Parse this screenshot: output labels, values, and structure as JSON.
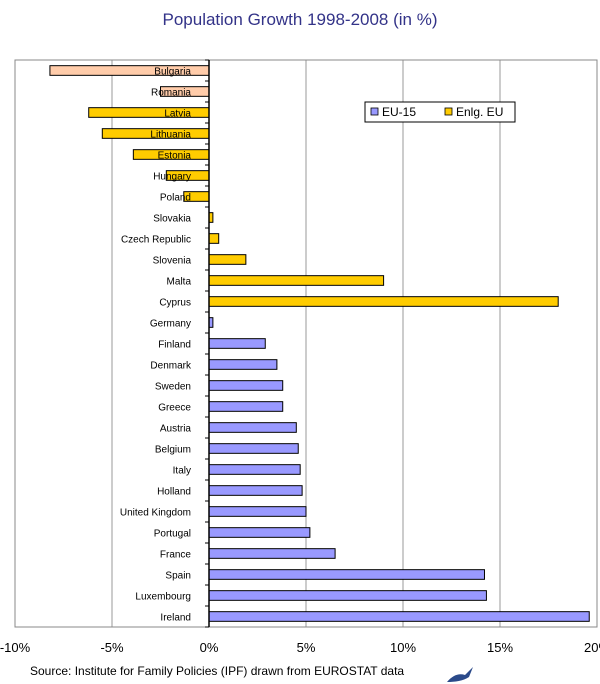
{
  "chart_data": {
    "type": "bar",
    "orientation": "horizontal",
    "title": "Population Growth 1998-2008 (in %)",
    "xlim": [
      -10,
      20
    ],
    "xticks": [
      "-10%",
      "-5%",
      "0%",
      "5%",
      "10%",
      "15%",
      "20%"
    ],
    "grid": true,
    "legend": {
      "placement": "top-right",
      "entries": [
        "EU-15",
        "Enlg. EU"
      ]
    },
    "colors": {
      "EU-15": "#9999ff",
      "Enlg. EU": "#ffcc00",
      "Bulgaria": "#ffccaa",
      "Romania": "#ffccaa"
    },
    "categories": [
      "Bulgaria",
      "Romania",
      "Latvia",
      "Lithuania",
      "Estonia",
      "Hungary",
      "Poland",
      "Slovakia",
      "Czech Republic",
      "Slovenia",
      "Malta",
      "Cyprus",
      "Germany",
      "Finland",
      "Denmark",
      "Sweden",
      "Greece",
      "Austria",
      "Belgium",
      "Italy",
      "Holland",
      "United Kingdom",
      "Portugal",
      "France",
      "Spain",
      "Luxembourg",
      "Ireland"
    ],
    "groups": [
      "Other",
      "Other",
      "Enlg. EU",
      "Enlg. EU",
      "Enlg. EU",
      "Enlg. EU",
      "Enlg. EU",
      "Enlg. EU",
      "Enlg. EU",
      "Enlg. EU",
      "Enlg. EU",
      "Enlg. EU",
      "EU-15",
      "EU-15",
      "EU-15",
      "EU-15",
      "EU-15",
      "EU-15",
      "EU-15",
      "EU-15",
      "EU-15",
      "EU-15",
      "EU-15",
      "EU-15",
      "EU-15",
      "EU-15",
      "EU-15"
    ],
    "values": [
      -8.2,
      -2.5,
      -6.2,
      -5.5,
      -3.9,
      -2.2,
      -1.3,
      0.2,
      0.5,
      1.9,
      9.0,
      18.0,
      0.2,
      2.9,
      3.5,
      3.8,
      3.8,
      4.5,
      4.6,
      4.7,
      4.8,
      5.0,
      5.2,
      6.5,
      14.2,
      14.3,
      19.6
    ]
  },
  "source": "Source: Institute for Family Policies (IPF) drawn from EUROSTAT data"
}
